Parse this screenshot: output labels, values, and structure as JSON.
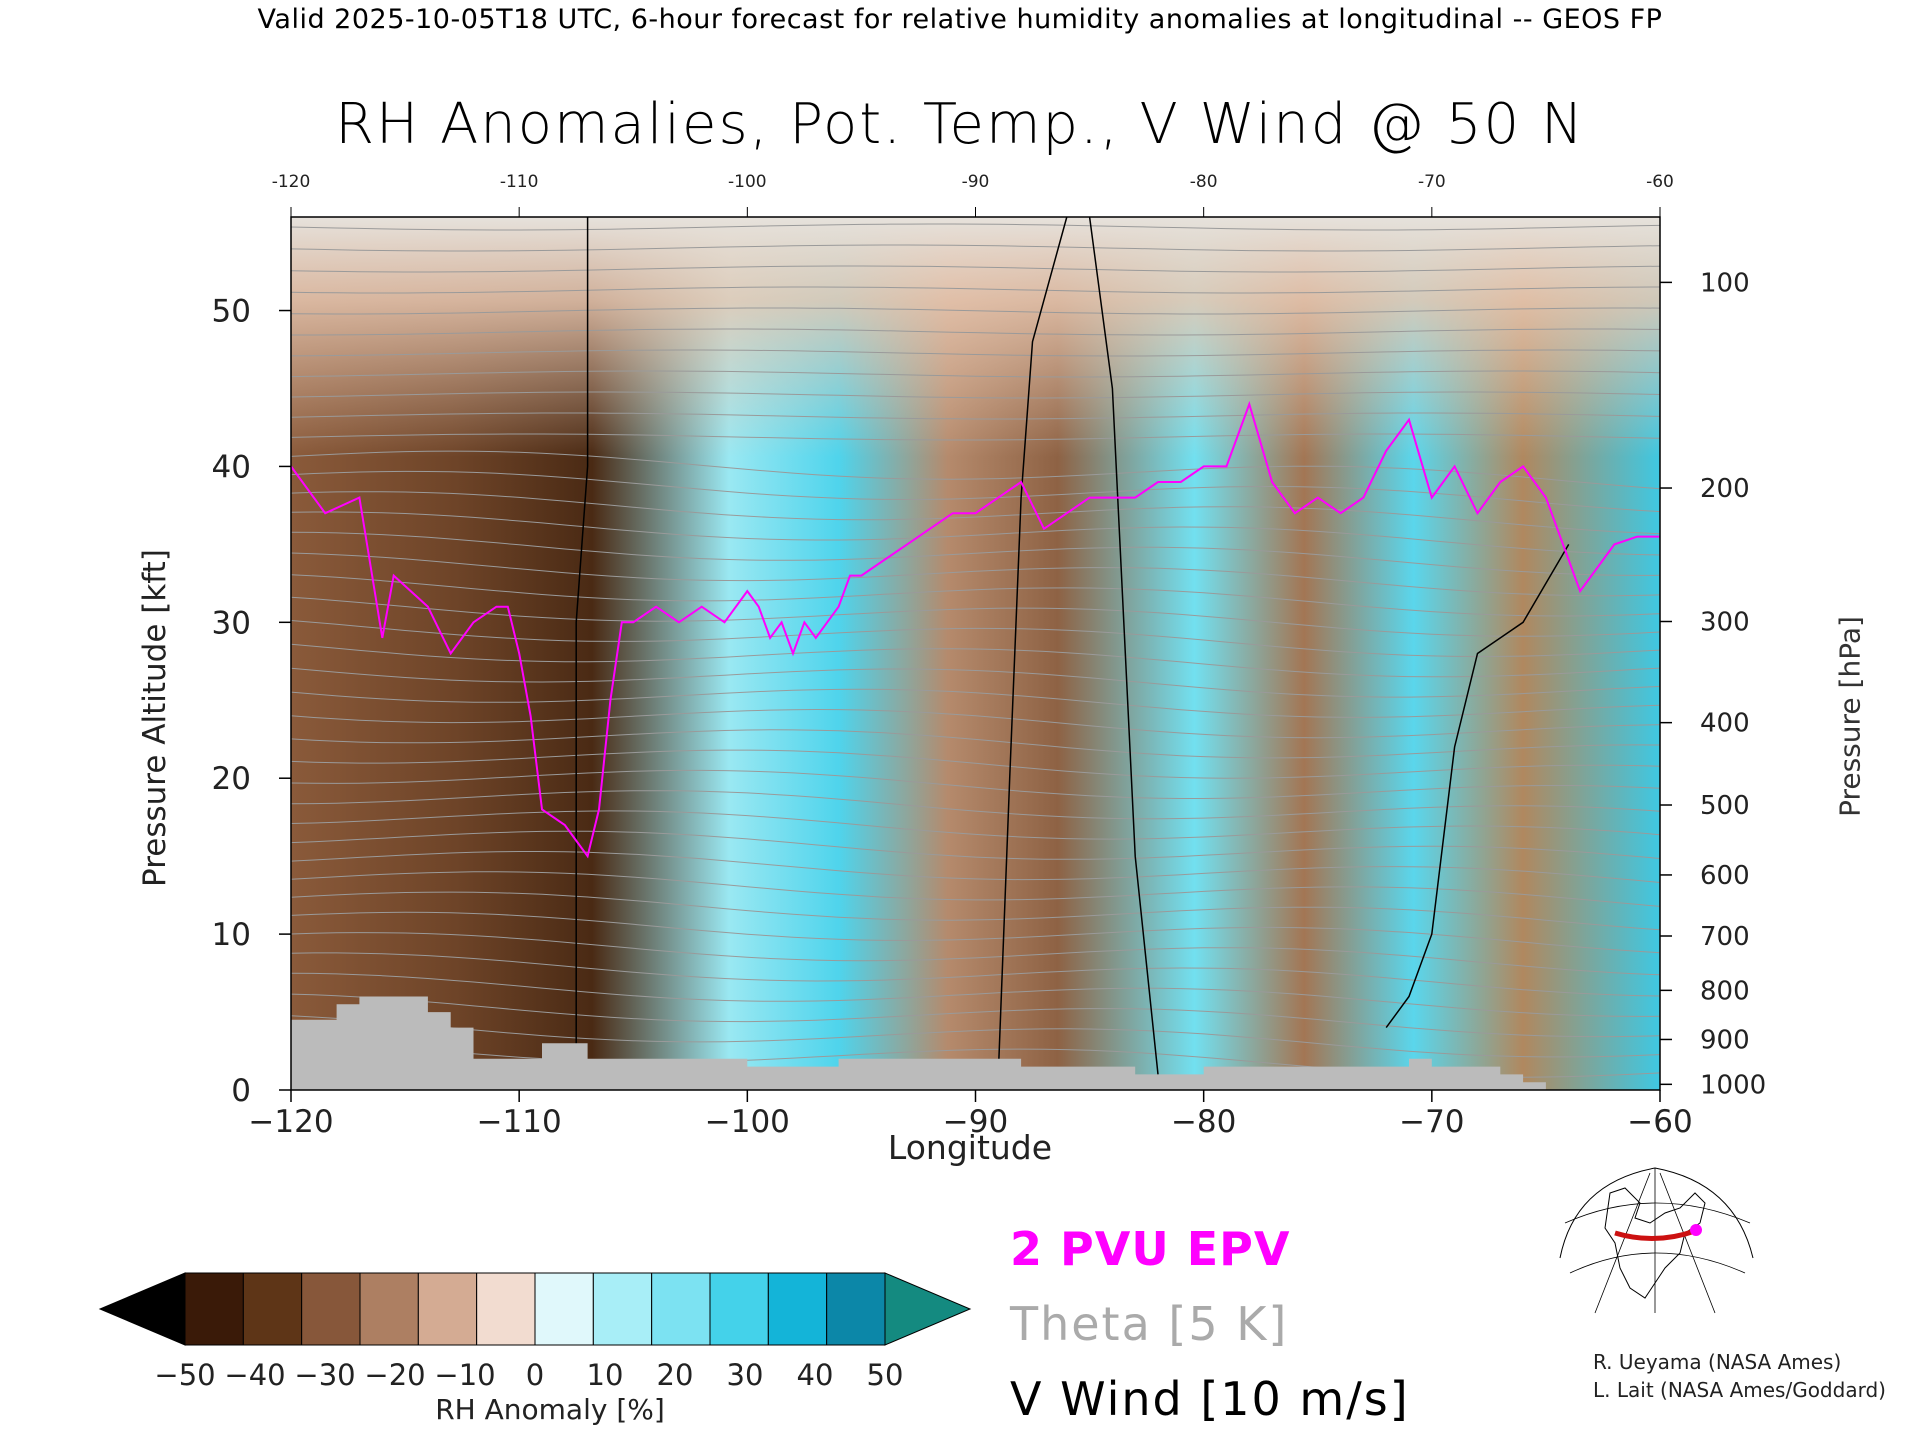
{
  "header_text": "Valid 2025-10-05T18 UTC, 6-hour forecast for relative humidity anomalies at longitudinal -- GEOS FP",
  "chart_data": {
    "type": "heatmap",
    "title": "RH Anomalies, Pot. Temp., V Wind @ 50 N",
    "xlabel": "Longitude",
    "ylabel_left": "Pressure Altitude [kft]",
    "ylabel_right": "Pressure [hPa]",
    "xlim": [
      -120,
      -60
    ],
    "ylim": [
      0,
      56
    ],
    "x_ticks": [
      -120,
      -110,
      -100,
      -90,
      -80,
      -70,
      -60
    ],
    "x_tick_labels": [
      "−120",
      "−110",
      "−100",
      "−90",
      "−80",
      "−70",
      "−60"
    ],
    "x_top_tick_labels": [
      "-120",
      "-110",
      "-100",
      "-90",
      "-80",
      "-70",
      "-60"
    ],
    "y_ticks": [
      0,
      10,
      20,
      30,
      40,
      50
    ],
    "pressure_levels": [
      100,
      200,
      300,
      400,
      500,
      600,
      700,
      800,
      900,
      1000
    ],
    "colorbar": {
      "label": "RH Anomaly [%]",
      "ticks": [
        "−50",
        "−40",
        "−30",
        "−20",
        "−10",
        "0",
        "10",
        "20",
        "30",
        "40",
        "50"
      ],
      "colors": [
        "#000000",
        "#3a1a08",
        "#5e3517",
        "#87573a",
        "#ad7f62",
        "#d4ab93",
        "#f2dcd0",
        "#e0f8fb",
        "#a8eef7",
        "#7ce2f2",
        "#44d2ea",
        "#14b4d8",
        "#0c87a8",
        "#148a80"
      ]
    },
    "legend": [
      {
        "label": "2 PVU EPV",
        "color": "#ff00ff"
      },
      {
        "label": "Theta [5 K]",
        "color": "#aaaaaa"
      },
      {
        "label": "V Wind [10 m/s]",
        "color": "#000000"
      }
    ],
    "terrain_color": "#bbbbbb",
    "epv_2pvu_line": {
      "x": [
        -120,
        -118.5,
        -117,
        -116,
        -115.5,
        -114,
        -113,
        -112,
        -111,
        -110.5,
        -110,
        -109.5,
        -109,
        -108,
        -107.5,
        -107,
        -106.5,
        -106,
        -105.5,
        -105,
        -104,
        -103,
        -102,
        -101,
        -100,
        -99.5,
        -99,
        -98.5,
        -98,
        -97.5,
        -97,
        -96.5,
        -96,
        -95.5,
        -95,
        -94,
        -93,
        -92,
        -91,
        -90,
        -89,
        -88,
        -87,
        -86,
        -85,
        -84,
        -83,
        -82,
        -81,
        -80,
        -79,
        -78,
        -77,
        -76,
        -75,
        -74,
        -73,
        -72,
        -71,
        -70,
        -69,
        -68,
        -67,
        -66,
        -65,
        -64,
        -63.5,
        -63,
        -62,
        -61,
        -60
      ],
      "y": [
        40,
        37,
        38,
        29,
        33,
        31,
        28,
        30,
        31,
        31,
        28,
        24,
        18,
        17,
        16,
        15,
        18,
        25,
        30,
        30,
        31,
        30,
        31,
        30,
        32,
        31,
        29,
        30,
        28,
        30,
        29,
        30,
        31,
        33,
        33,
        34,
        35,
        36,
        37,
        37,
        38,
        39,
        36,
        37,
        38,
        38,
        38,
        39,
        39,
        40,
        40,
        44,
        39,
        37,
        38,
        37,
        38,
        41,
        43,
        38,
        40,
        37,
        39,
        40,
        38,
        34,
        32,
        33,
        35,
        35.5,
        35.5
      ]
    },
    "terrain_surface": {
      "x": [
        -120,
        -119,
        -118,
        -117,
        -116,
        -115,
        -114,
        -113,
        -112,
        -111,
        -110,
        -109,
        -108,
        -107,
        -106,
        -105,
        -104,
        -103,
        -102,
        -101,
        -100,
        -99,
        -98,
        -97,
        -96,
        -95,
        -94,
        -93,
        -92,
        -91,
        -90,
        -89,
        -88,
        -87,
        -86,
        -85,
        -84,
        -83,
        -82,
        -81,
        -80,
        -79,
        -78,
        -77,
        -76,
        -75,
        -74,
        -73,
        -72,
        -71,
        -70,
        -69,
        -68,
        -67,
        -66,
        -65
      ],
      "y": [
        4.5,
        4.5,
        5.5,
        6,
        6,
        6,
        5,
        4,
        2,
        2,
        2,
        3,
        3,
        2,
        2,
        2,
        2,
        2,
        2,
        2,
        1.5,
        1.5,
        1.5,
        1.5,
        2,
        2,
        2,
        2,
        2,
        2,
        2,
        2,
        1.5,
        1.5,
        1.5,
        1.5,
        1.5,
        1,
        1,
        1,
        1.5,
        1.5,
        1.5,
        1.5,
        1.5,
        1.5,
        1.5,
        1.5,
        1.5,
        2,
        1.5,
        1.5,
        1.5,
        1,
        0.5,
        0
      ]
    },
    "v_wind_zero_contours": [
      {
        "x": [
          -107.5,
          -107.5,
          -107,
          -107
        ],
        "y": [
          0,
          30,
          40,
          56
        ]
      },
      {
        "x": [
          -89,
          -88.5,
          -88,
          -87.5,
          -86
        ],
        "y": [
          1,
          20,
          38,
          48,
          56
        ]
      },
      {
        "x": [
          -82,
          -83,
          -83.5,
          -84,
          -85
        ],
        "y": [
          1,
          15,
          30,
          45,
          56
        ]
      },
      {
        "x": [
          -72,
          -71,
          -70,
          -69,
          -68,
          -66,
          -64
        ],
        "y": [
          4,
          6,
          10,
          22,
          28,
          30,
          35
        ]
      }
    ],
    "theta_levels": [
      300,
      310,
      320,
      330,
      340,
      350,
      360,
      370,
      380,
      390,
      400,
      410,
      420
    ]
  }
}
